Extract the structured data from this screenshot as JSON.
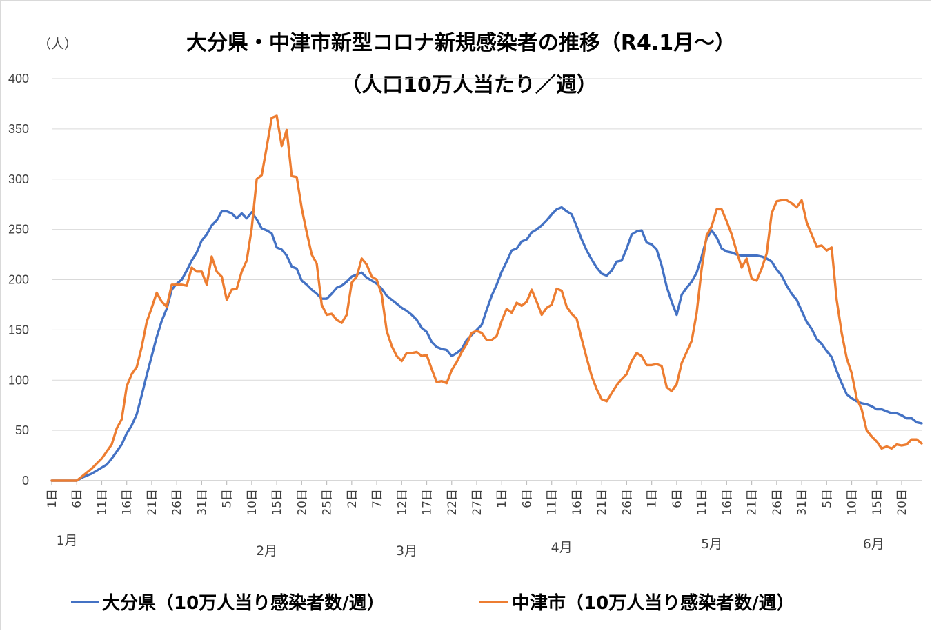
{
  "chart_data": {
    "type": "line",
    "title_line1": "大分県・中津市新型コロナ新規感染者の推移（R4.1月～）",
    "title_line2": "（人口10万人当たり／週）",
    "y_unit": "（人）",
    "ylim": [
      0,
      400
    ],
    "y_ticks": [
      0,
      50,
      100,
      150,
      200,
      250,
      300,
      350,
      400
    ],
    "grid": true,
    "legend_position": "bottom",
    "x_tick_labels": [
      "1日",
      "6日",
      "11日",
      "16日",
      "21日",
      "26日",
      "31日",
      "5日",
      "10日",
      "15日",
      "20日",
      "25日",
      "2日",
      "7日",
      "12日",
      "17日",
      "22日",
      "27日",
      "1日",
      "6日",
      "11日",
      "16日",
      "21日",
      "26日",
      "1日",
      "6日",
      "11日",
      "16日",
      "21日",
      "26日",
      "31日",
      "5日",
      "10日",
      "15日",
      "20日"
    ],
    "month_labels": [
      "1月",
      "2月",
      "3月",
      "4月",
      "5月",
      "6月"
    ],
    "colors": {
      "oita": "#4472C4",
      "nakatsu": "#ED7D31"
    },
    "series": [
      {
        "name": "大分県（10万人当り感染者数/週）",
        "key": "oita",
        "values": [
          0,
          0,
          0,
          0,
          0,
          0,
          3,
          5,
          7,
          10,
          13,
          16,
          22,
          29,
          36,
          47,
          55,
          66,
          85,
          105,
          124,
          143,
          159,
          171,
          190,
          196,
          200,
          209,
          219,
          227,
          239,
          245,
          254,
          259,
          268,
          268,
          266,
          261,
          266,
          261,
          267,
          260,
          251,
          249,
          246,
          232,
          230,
          224,
          213,
          211,
          199,
          195,
          190,
          186,
          181,
          181,
          186,
          192,
          194,
          198,
          203,
          205,
          207,
          202,
          199,
          196,
          191,
          184,
          180,
          176,
          172,
          169,
          165,
          160,
          152,
          148,
          138,
          133,
          131,
          130,
          124,
          127,
          131,
          140,
          145,
          150,
          155,
          170,
          184,
          195,
          208,
          218,
          229,
          231,
          238,
          240,
          247,
          250,
          254,
          259,
          265,
          270,
          272,
          268,
          265,
          253,
          240,
          229,
          220,
          212,
          206,
          204,
          209,
          218,
          219,
          231,
          245,
          248,
          249,
          237,
          235,
          230,
          214,
          193,
          178,
          165,
          185,
          192,
          198,
          207,
          223,
          241,
          249,
          242,
          231,
          228,
          227,
          225,
          224,
          224,
          224,
          224,
          223,
          221,
          218,
          210,
          204,
          194,
          186,
          180,
          169,
          158,
          151,
          141,
          136,
          129,
          123,
          109,
          97,
          86,
          82,
          79,
          77,
          76,
          74,
          71,
          71,
          69,
          67,
          67,
          65,
          62,
          62,
          58,
          57
        ]
      },
      {
        "name": "中津市（10万人当り感染者数/週）",
        "key": "nakatsu",
        "values": [
          0,
          0,
          0,
          0,
          0,
          0,
          4,
          8,
          12,
          17,
          22,
          29,
          36,
          52,
          61,
          94,
          106,
          113,
          133,
          158,
          172,
          187,
          178,
          173,
          195,
          195,
          195,
          194,
          212,
          208,
          208,
          195,
          223,
          208,
          203,
          180,
          190,
          191,
          208,
          219,
          251,
          300,
          304,
          332,
          361,
          363,
          333,
          349,
          303,
          302,
          271,
          247,
          225,
          216,
          175,
          165,
          166,
          160,
          157,
          165,
          197,
          203,
          221,
          215,
          203,
          200,
          185,
          149,
          134,
          124,
          119,
          127,
          127,
          128,
          124,
          125,
          111,
          98,
          99,
          97,
          110,
          118,
          128,
          136,
          147,
          149,
          147,
          140,
          140,
          144,
          159,
          171,
          167,
          177,
          174,
          178,
          190,
          178,
          165,
          172,
          175,
          191,
          189,
          173,
          166,
          161,
          141,
          122,
          104,
          91,
          81,
          79,
          87,
          95,
          101,
          106,
          119,
          127,
          124,
          115,
          115,
          116,
          114,
          93,
          89,
          96,
          117,
          128,
          139,
          167,
          211,
          244,
          253,
          270,
          270,
          258,
          245,
          228,
          212,
          221,
          201,
          199,
          211,
          226,
          266,
          278,
          279,
          279,
          276,
          272,
          279,
          257,
          245,
          233,
          234,
          229,
          232,
          180,
          147,
          122,
          107,
          82,
          71,
          50,
          44,
          39,
          32,
          34,
          32,
          36,
          35,
          36,
          41,
          41,
          37
        ]
      }
    ]
  }
}
